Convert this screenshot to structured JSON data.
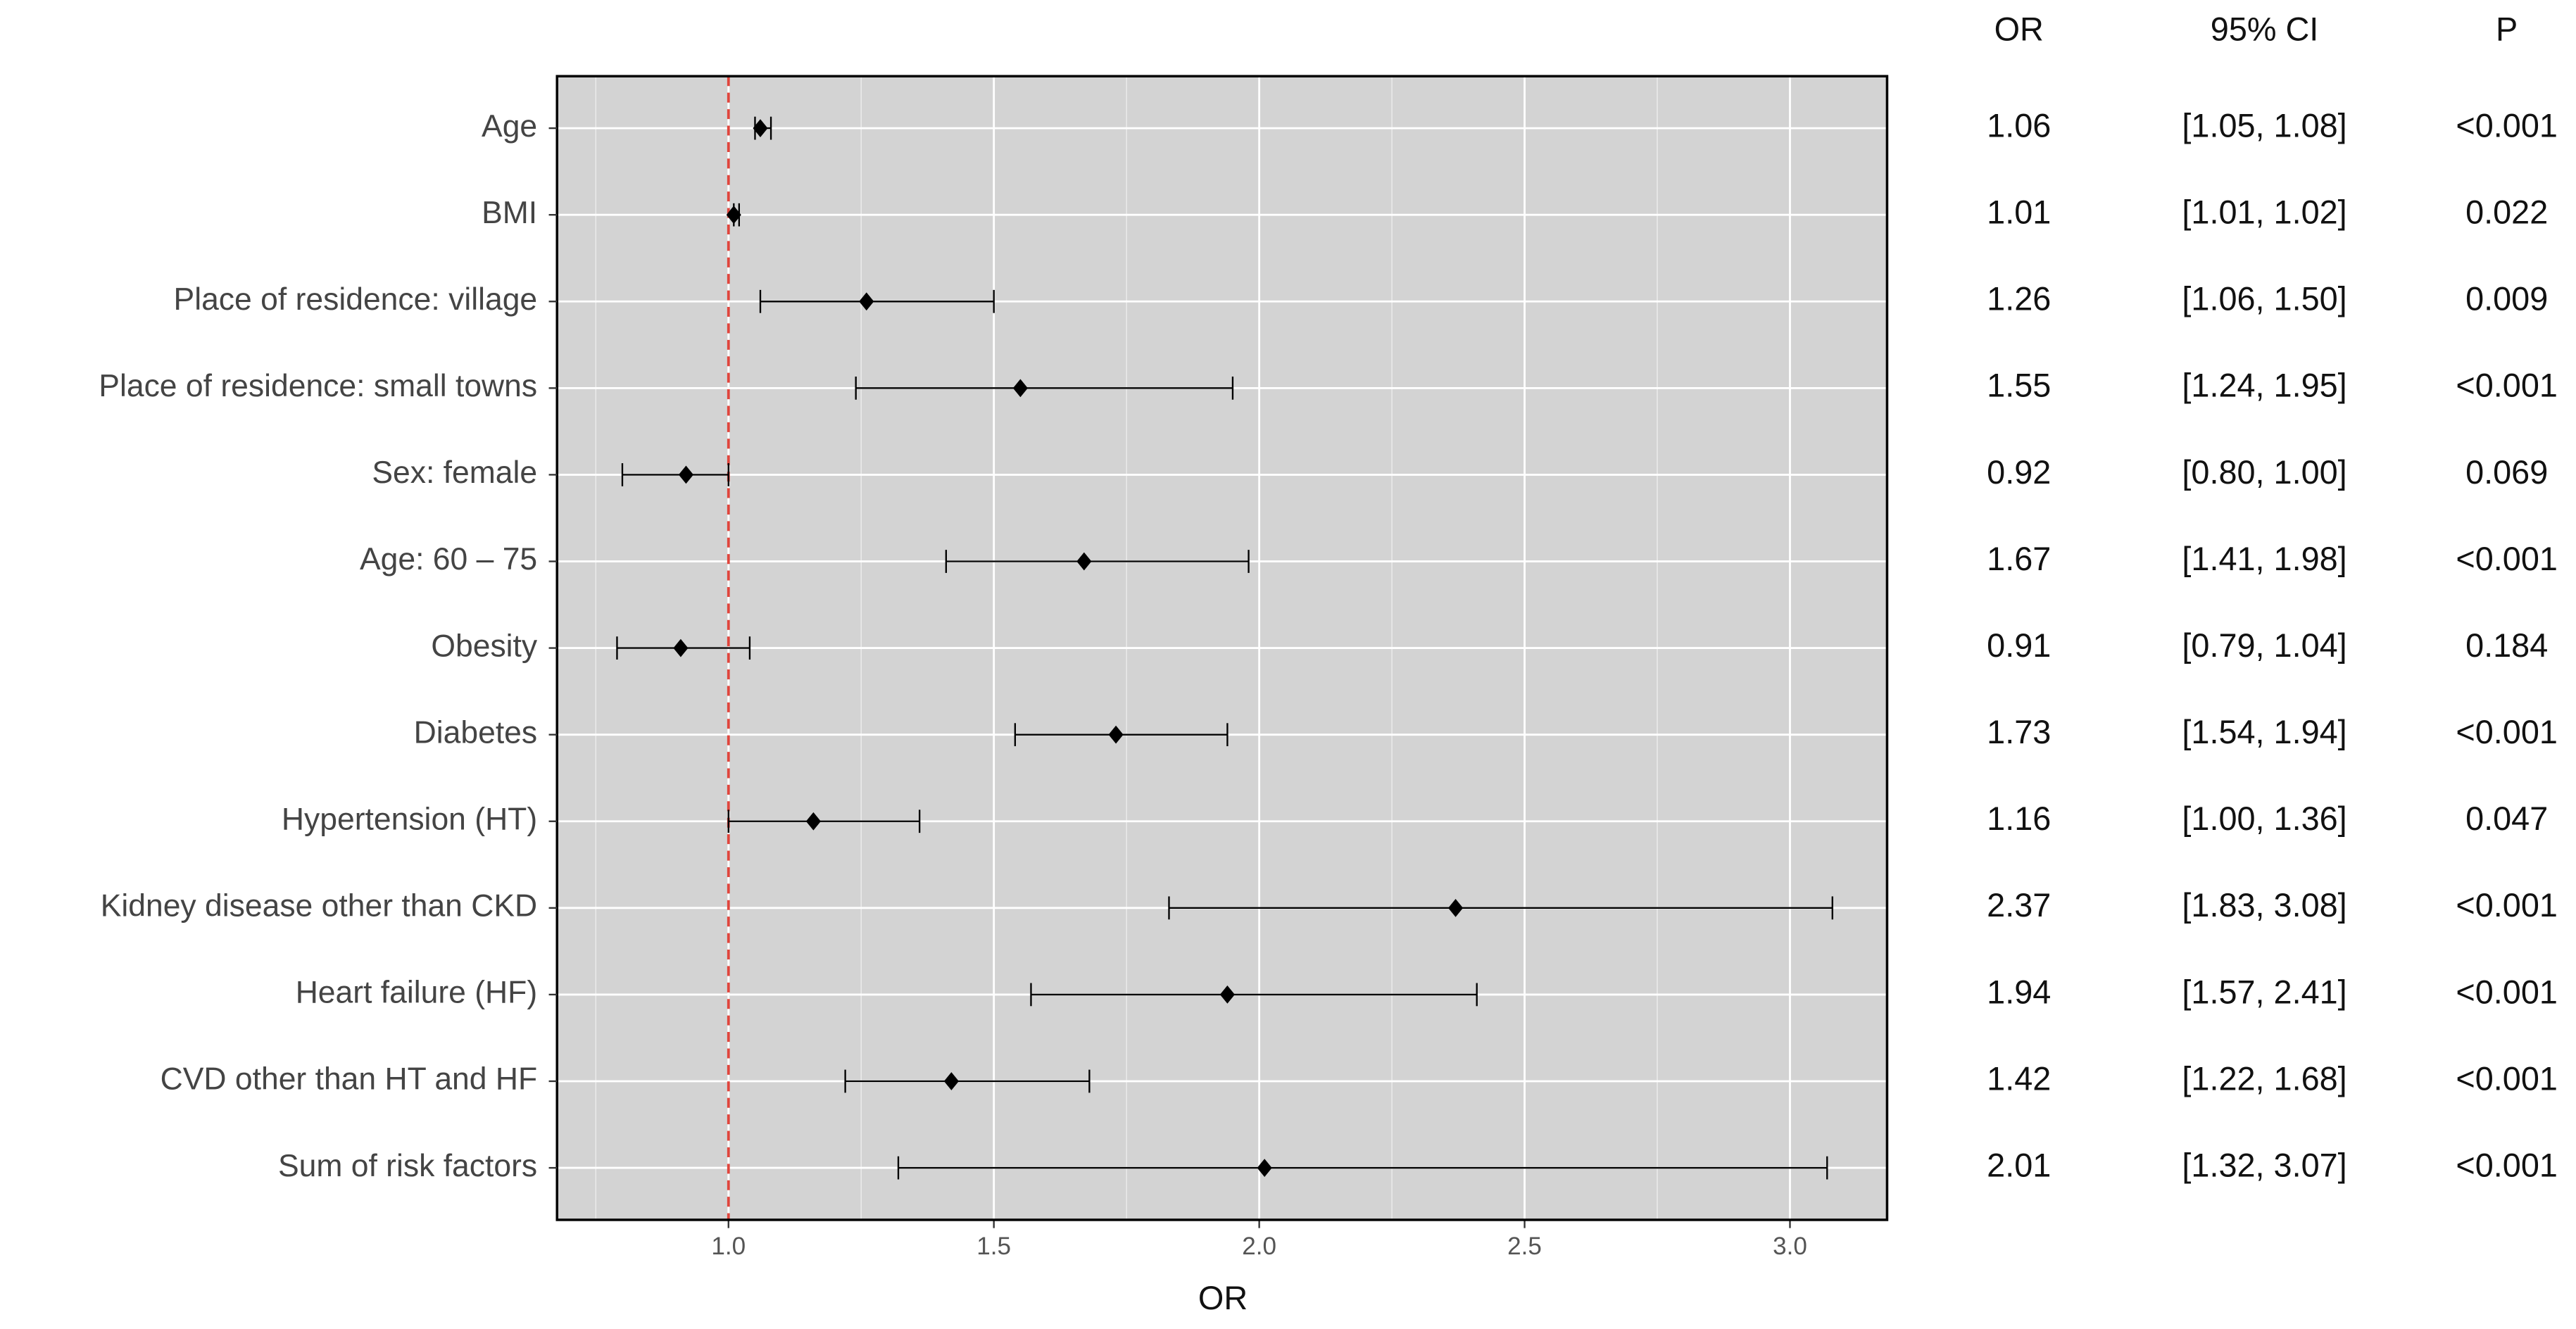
{
  "chart_data": {
    "type": "forest",
    "categories": [
      "Age",
      "BMI",
      "Place of residence: village",
      "Place of residence: small towns",
      "Sex: female",
      "Age: 60 – 75",
      "Obesity",
      "Diabetes",
      "Hypertension (HT)",
      "Kidney disease other than CKD",
      "Heart failure (HF)",
      "CVD other than HT and HF",
      "Sum of risk factors"
    ],
    "values": [
      1.06,
      1.01,
      1.26,
      1.55,
      0.92,
      1.67,
      0.91,
      1.73,
      1.16,
      2.37,
      1.94,
      1.42,
      2.01
    ],
    "ci_lower": [
      1.05,
      1.01,
      1.06,
      1.24,
      0.8,
      1.41,
      0.79,
      1.54,
      1.0,
      1.83,
      1.57,
      1.22,
      1.32
    ],
    "ci_upper": [
      1.08,
      1.02,
      1.5,
      1.95,
      1.0,
      1.98,
      1.04,
      1.94,
      1.36,
      3.08,
      2.41,
      1.68,
      3.07
    ],
    "ci_labels": [
      "[1.05, 1.08]",
      "[1.01, 1.02]",
      "[1.06, 1.50]",
      "[1.24, 1.95]",
      "[0.80, 1.00]",
      "[1.41, 1.98]",
      "[0.79, 1.04]",
      "[1.54, 1.94]",
      "[1.00, 1.36]",
      "[1.83, 3.08]",
      "[1.57, 2.41]",
      "[1.22, 1.68]",
      "[1.32, 3.07]"
    ],
    "p_values": [
      "<0.001",
      "0.022",
      "0.009",
      "<0.001",
      "0.069",
      "<0.001",
      "0.184",
      "<0.001",
      "0.047",
      "<0.001",
      "<0.001",
      "<0.001",
      "<0.001"
    ],
    "columns": [
      "OR",
      "95% CI",
      "P"
    ],
    "x_label": "OR",
    "xlim": [
      0.677,
      3.183
    ],
    "xticks": [
      {
        "value": 1,
        "label": "1.0"
      },
      {
        "value": 1.5,
        "label": "1.5"
      },
      {
        "value": 2,
        "label": "2.0"
      },
      {
        "value": 2.5,
        "label": "2.5"
      },
      {
        "value": 3,
        "label": "3.0"
      }
    ],
    "reference_line": 1,
    "reference_color": "#e0453c",
    "color": "#000000",
    "panel_color": "#d3d3d3",
    "grid": true
  }
}
